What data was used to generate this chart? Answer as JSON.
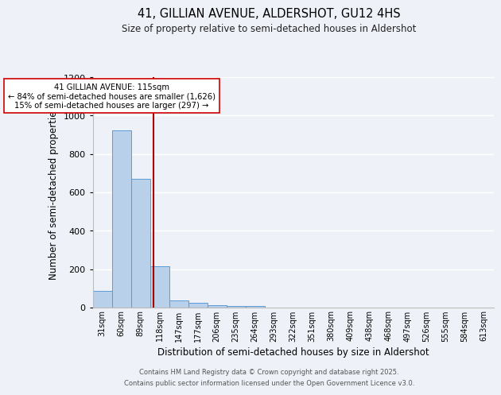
{
  "title1": "41, GILLIAN AVENUE, ALDERSHOT, GU12 4HS",
  "title2": "Size of property relative to semi-detached houses in Aldershot",
  "xlabel": "Distribution of semi-detached houses by size in Aldershot",
  "ylabel": "Number of semi-detached properties",
  "categories": [
    "31sqm",
    "60sqm",
    "89sqm",
    "118sqm",
    "147sqm",
    "177sqm",
    "206sqm",
    "235sqm",
    "264sqm",
    "293sqm",
    "322sqm",
    "351sqm",
    "380sqm",
    "409sqm",
    "438sqm",
    "468sqm",
    "497sqm",
    "526sqm",
    "555sqm",
    "584sqm",
    "613sqm"
  ],
  "values": [
    87,
    921,
    672,
    216,
    38,
    25,
    14,
    7,
    10,
    0,
    0,
    0,
    0,
    0,
    0,
    0,
    0,
    0,
    0,
    0,
    0
  ],
  "bar_color": "#b8d0ea",
  "bar_edge_color": "#5b9bd5",
  "background_color": "#eef2f8",
  "grid_color": "#ffffff",
  "property_line_x": 2.67,
  "property_line_color": "#aa0000",
  "annotation_text": "41 GILLIAN AVENUE: 115sqm\n← 84% of semi-detached houses are smaller (1,626)\n15% of semi-detached houses are larger (297) →",
  "annotation_box_color": "#ffffff",
  "annotation_box_edge": "#cc0000",
  "ylim": [
    0,
    1200
  ],
  "yticks": [
    0,
    200,
    400,
    600,
    800,
    1000,
    1200
  ],
  "footer1": "Contains HM Land Registry data © Crown copyright and database right 2025.",
  "footer2": "Contains public sector information licensed under the Open Government Licence v3.0."
}
